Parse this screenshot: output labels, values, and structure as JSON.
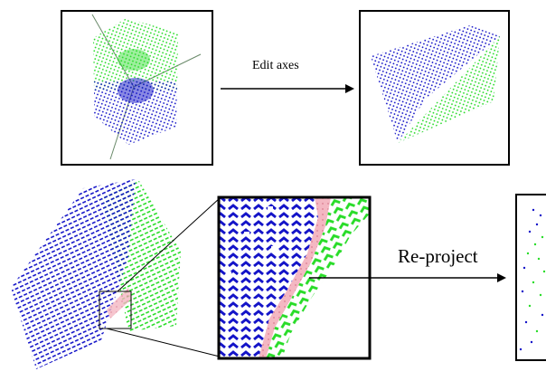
{
  "labels": {
    "edit_axes": "Edit axes",
    "reproject": "Re-project"
  },
  "colors": {
    "blue": "#1414c8",
    "green": "#28dc28",
    "pink": "#f4a6b4",
    "axis": "#6a8a6a",
    "frame": "#000000"
  },
  "panels": [
    {
      "name": "original-cluster-panel",
      "content": "blue and green point cloud with axes"
    },
    {
      "name": "edited-axes-panel",
      "content": "separated blue and green point cloud"
    },
    {
      "name": "zoom-panel",
      "content": "magnified boundary region"
    },
    {
      "name": "reprojected-panel",
      "content": "sparse reprojected points (cropped)"
    }
  ]
}
